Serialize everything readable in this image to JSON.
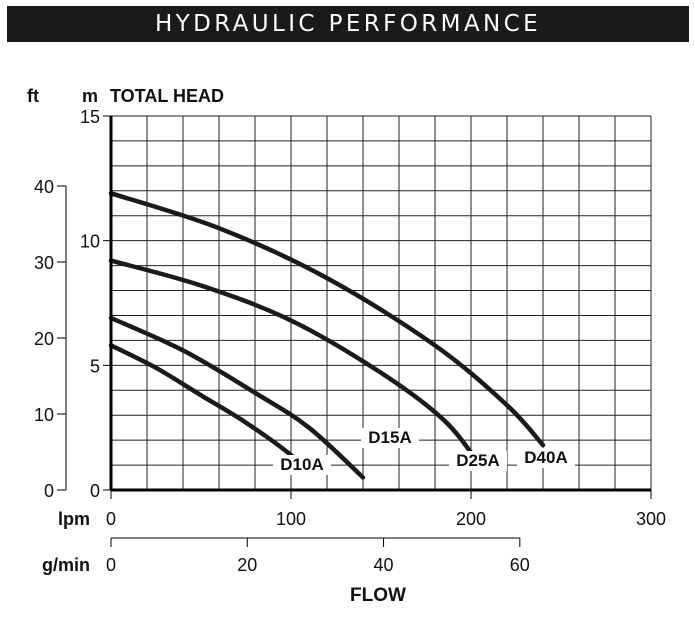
{
  "banner_title": "HYDRAULIC PERFORMANCE",
  "colors": {
    "banner_bg": "#1a1a1a",
    "curve": "#1a1a1a",
    "grid": "#222222"
  },
  "chart_data": {
    "type": "line",
    "title": "HYDRAULIC PERFORMANCE",
    "ylabel": "TOTAL HEAD",
    "xlabel": "FLOW",
    "y_units": {
      "primary": "m",
      "secondary": "ft"
    },
    "x_units": {
      "primary": "lpm",
      "secondary": "g/min"
    },
    "y_m": {
      "ticks": [
        0,
        5,
        10,
        15
      ],
      "tick_labels": [
        "0",
        "5",
        "10",
        "15"
      ],
      "range": [
        0,
        15
      ]
    },
    "y_ft": {
      "ticks": [
        0,
        10,
        20,
        30,
        40
      ],
      "tick_labels": [
        "0",
        "10",
        "20",
        "30",
        "40"
      ],
      "range": [
        0,
        40
      ]
    },
    "x_lpm": {
      "ticks": [
        0,
        100,
        200,
        300
      ],
      "tick_labels": [
        "0",
        "100",
        "200",
        "300"
      ],
      "range": [
        0,
        300
      ]
    },
    "x_gpm": {
      "ticks": [
        0,
        20,
        40,
        60
      ],
      "tick_labels": [
        "0",
        "20",
        "40",
        "60"
      ]
    },
    "grid": true,
    "series": [
      {
        "name": "D10A",
        "x": [
          0,
          25,
          50,
          75,
          100,
          105
        ],
        "y": [
          5.8,
          4.9,
          3.8,
          2.7,
          1.4,
          0.9
        ]
      },
      {
        "name": "D15A",
        "x": [
          0,
          40,
          80,
          110,
          140
        ],
        "y": [
          6.9,
          5.6,
          3.9,
          2.5,
          0.5
        ]
      },
      {
        "name": "D25A",
        "x": [
          0,
          50,
          100,
          150,
          185,
          205
        ],
        "y": [
          9.2,
          8.2,
          6.8,
          4.7,
          2.8,
          1.0
        ]
      },
      {
        "name": "D40A",
        "x": [
          0,
          60,
          120,
          180,
          220,
          240
        ],
        "y": [
          11.9,
          10.5,
          8.5,
          5.8,
          3.4,
          1.8
        ]
      }
    ]
  }
}
